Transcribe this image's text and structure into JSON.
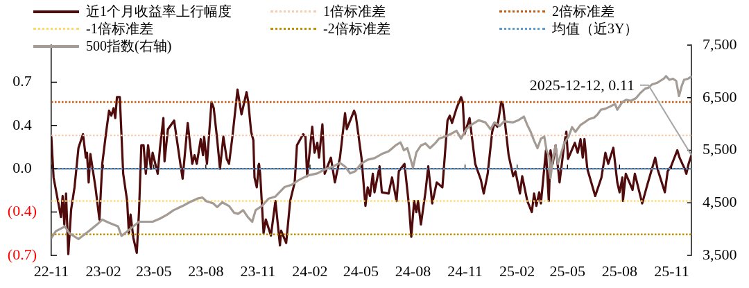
{
  "chart_data": {
    "type": "line",
    "legend": "top",
    "marker": "none",
    "xlim": [
      "2022-11-07",
      "2025-12-12"
    ],
    "xticks": [
      {
        "value": "2022-11-07",
        "label": "22-11"
      },
      {
        "value": "2023-02-07",
        "label": "23-02"
      },
      {
        "value": "2023-05-07",
        "label": "23-05"
      },
      {
        "value": "2023-08-07",
        "label": "23-08"
      },
      {
        "value": "2023-11-07",
        "label": "23-11"
      },
      {
        "value": "2024-02-07",
        "label": "24-02"
      },
      {
        "value": "2024-05-07",
        "label": "24-05"
      },
      {
        "value": "2024-08-07",
        "label": "24-08"
      },
      {
        "value": "2024-11-07",
        "label": "24-11"
      },
      {
        "value": "2025-02-07",
        "label": "25-02"
      },
      {
        "value": "2025-05-07",
        "label": "25-05"
      },
      {
        "value": "2025-08-07",
        "label": "25-08"
      },
      {
        "value": "2025-11-07",
        "label": "25-11"
      }
    ],
    "ylim": [
      -0.7,
      1.0
    ],
    "yticks": [
      {
        "value": -0.7,
        "label": "(0.7)"
      },
      {
        "value": -0.35,
        "label": "(0.4)"
      },
      {
        "value": 0,
        "label": "0.0"
      },
      {
        "value": 0.35,
        "label": "0.4"
      },
      0.7
    ],
    "y2lim": [
      3500,
      7500
    ],
    "y2ticks": [
      {
        "value": 3500,
        "label": "3,500"
      },
      {
        "value": 4500,
        "label": "4,500"
      },
      {
        "value": 5500,
        "label": "5,500"
      },
      {
        "value": 6500,
        "label": "6,500"
      },
      {
        "value": 7500,
        "label": "7,500"
      }
    ],
    "annotations": [
      {
        "text": "2025-12-12, 0.11",
        "x": "2025-12-12",
        "y": 0.11
      }
    ],
    "series": [
      {
        "name": "近1个月收益率上行幅度",
        "color": "#500c0c",
        "x": [
          "2022-11-07",
          "2022-11-11",
          "2022-11-24",
          "2022-11-27",
          "2022-11-30",
          "2022-12-03",
          "2022-12-07",
          "2022-12-12",
          "2022-12-18",
          "2022-12-25",
          "2023-01-02",
          "2023-01-07",
          "2023-01-09",
          "2023-01-12",
          "2023-01-15",
          "2023-01-24",
          "2023-01-31",
          "2023-02-05",
          "2023-02-12",
          "2023-02-17",
          "2023-02-21",
          "2023-02-25",
          "2023-02-28",
          "2023-03-03",
          "2023-03-08",
          "2023-03-14",
          "2023-03-21",
          "2023-03-24",
          "2023-03-27",
          "2023-04-01",
          "2023-04-07",
          "2023-04-11",
          "2023-04-15",
          "2023-04-19",
          "2023-04-23",
          "2023-04-27",
          "2023-05-02",
          "2023-05-05",
          "2023-05-14",
          "2023-05-18",
          "2023-05-24",
          "2023-05-26",
          "2023-06-01",
          "2023-06-12",
          "2023-06-23",
          "2023-06-27",
          "2023-07-06",
          "2023-07-14",
          "2023-07-18",
          "2023-07-22",
          "2023-07-29",
          "2023-08-02",
          "2023-08-04",
          "2023-08-09",
          "2023-08-17",
          "2023-08-21",
          "2023-08-27",
          "2023-09-01",
          "2023-09-07",
          "2023-09-13",
          "2023-09-17",
          "2023-09-23",
          "2023-10-02",
          "2023-10-09",
          "2023-10-18",
          "2023-10-21",
          "2023-10-26",
          "2023-10-30",
          "2023-11-01",
          "2023-11-05",
          "2023-11-09",
          "2023-11-11",
          "2023-11-17",
          "2023-11-21",
          "2023-11-30",
          "2023-12-08",
          "2023-12-16",
          "2023-12-18",
          "2023-12-27",
          "2024-01-03",
          "2024-01-11",
          "2024-01-15",
          "2024-01-26",
          "2024-01-30",
          "2024-02-02",
          "2024-02-11",
          "2024-02-15",
          "2024-02-20",
          "2024-02-23",
          "2024-02-29",
          "2024-03-04",
          "2024-03-15",
          "2024-03-22",
          "2024-03-31",
          "2024-04-09",
          "2024-04-12",
          "2024-04-25",
          "2024-04-28",
          "2024-05-08",
          "2024-05-15",
          "2024-05-19",
          "2024-05-23",
          "2024-05-28",
          "2024-05-31",
          "2024-06-09",
          "2024-06-13",
          "2024-06-25",
          "2024-07-01",
          "2024-07-09",
          "2024-07-13",
          "2024-07-23",
          "2024-07-31",
          "2024-08-04",
          "2024-08-09",
          "2024-08-13",
          "2024-08-16",
          "2024-08-21",
          "2024-08-29",
          "2024-09-03",
          "2024-09-10",
          "2024-09-18",
          "2024-09-28",
          "2024-10-07",
          "2024-10-11",
          "2024-10-15",
          "2024-10-23",
          "2024-10-31",
          "2024-11-03",
          "2024-11-06",
          "2024-11-15",
          "2024-11-25",
          "2024-12-05",
          "2024-12-10",
          "2024-12-17",
          "2024-12-25",
          "2024-12-29",
          "2025-01-03",
          "2025-01-10",
          "2025-01-13",
          "2025-01-23",
          "2025-01-31",
          "2025-02-04",
          "2025-02-12",
          "2025-02-16",
          "2025-02-25",
          "2025-03-05",
          "2025-03-09",
          "2025-03-13",
          "2025-03-18",
          "2025-03-21",
          "2025-03-30",
          "2025-04-04",
          "2025-04-07",
          "2025-04-11",
          "2025-04-16",
          "2025-04-23",
          "2025-05-01",
          "2025-05-05",
          "2025-05-08",
          "2025-05-20",
          "2025-05-25",
          "2025-05-30",
          "2025-06-03",
          "2025-06-06",
          "2025-06-11",
          "2025-06-25",
          "2025-07-06",
          "2025-07-13",
          "2025-07-18",
          "2025-07-27",
          "2025-08-03",
          "2025-08-07",
          "2025-08-12",
          "2025-08-13",
          "2025-08-18",
          "2025-08-30",
          "2025-09-03",
          "2025-09-16",
          "2025-09-25",
          "2025-10-09",
          "2025-10-13",
          "2025-10-26",
          "2025-10-31",
          "2025-11-06",
          "2025-11-17",
          "2025-11-21",
          "2025-11-30",
          "2025-12-03",
          "2025-12-07",
          "2025-12-12"
        ],
        "values": [
          0.26,
          -0.07,
          -0.39,
          -0.22,
          -0.45,
          -0.2,
          -0.69,
          -0.33,
          -0.15,
          0.17,
          0.28,
          0.09,
          0.13,
          -0.11,
          0.12,
          -0.15,
          -0.41,
          0.04,
          0.3,
          0.47,
          0.43,
          0.49,
          0.41,
          0.58,
          0.58,
          -0.04,
          -0.26,
          -0.52,
          -0.37,
          -0.56,
          -0.68,
          -0.34,
          0.19,
          0.19,
          -0.04,
          0.19,
          0.0,
          0.13,
          -0.04,
          0.17,
          0.41,
          0.06,
          0.32,
          0.39,
          0.04,
          -0.08,
          0.37,
          0.04,
          0.11,
          0.04,
          0.24,
          0.11,
          0.26,
          0.04,
          0.54,
          0.49,
          0.24,
          0.0,
          0.26,
          0.08,
          0.04,
          0.26,
          0.64,
          0.44,
          0.62,
          0.54,
          0.3,
          0.23,
          -0.07,
          -0.15,
          0.04,
          -0.04,
          -0.52,
          -0.41,
          -0.54,
          -0.26,
          -0.62,
          -0.5,
          -0.6,
          -0.26,
          -0.11,
          0.19,
          0.28,
          0.26,
          -0.06,
          0.34,
          0.13,
          0.21,
          0.09,
          0.36,
          -0.04,
          0.09,
          -0.11,
          0.09,
          0.45,
          0.32,
          0.47,
          0.43,
          0.09,
          -0.3,
          -0.15,
          -0.22,
          -0.04,
          -0.19,
          0.02,
          -0.19,
          -0.2,
          -0.07,
          -0.26,
          -0.02,
          0.04,
          -0.3,
          -0.55,
          -0.26,
          -0.35,
          -0.26,
          -0.45,
          -0.19,
          0.02,
          -0.28,
          -0.11,
          -0.15,
          0.39,
          0.43,
          0.37,
          0.49,
          0.58,
          0.54,
          0.28,
          0.41,
          0.04,
          -0.09,
          -0.2,
          -0.04,
          0.3,
          0.37,
          0.34,
          0.54,
          0.52,
          0.11,
          -0.06,
          -0.02,
          -0.2,
          -0.06,
          -0.26,
          -0.35,
          -0.2,
          -0.3,
          -0.19,
          -0.28,
          0.15,
          -0.26,
          0.15,
          0.04,
          0.19,
          -0.11,
          0.19,
          0.3,
          0.08,
          0.21,
          0.13,
          0.24,
          0.09,
          0.24,
          0.0,
          -0.22,
          -0.07,
          0.13,
          0.04,
          0.17,
          -0.11,
          -0.19,
          -0.07,
          -0.26,
          -0.04,
          -0.17,
          -0.04,
          -0.28,
          -0.13,
          0.09,
          0.0,
          -0.19,
          -0.02,
          0.02,
          0.15,
          0.09,
          0.0,
          -0.04,
          0.04,
          0.11
        ]
      },
      {
        "name": "1倍标准差",
        "color": "#f8cbad",
        "line_style": "dotted",
        "x": [
          "2022-11-07",
          "2025-12-12"
        ],
        "values": [
          0.27,
          0.27
        ]
      },
      {
        "name": "2倍标准差",
        "color": "#c55a11",
        "line_style": "dotted",
        "x": [
          "2022-11-07",
          "2025-12-12"
        ],
        "values": [
          0.54,
          0.54
        ]
      },
      {
        "name": "-1倍标准差",
        "color": "#ffd966",
        "line_style": "dotted",
        "x": [
          "2022-11-07",
          "2025-12-12"
        ],
        "values": [
          -0.26,
          -0.26
        ]
      },
      {
        "name": "-2倍标准差",
        "color": "#bf9000",
        "line_style": "dotted",
        "x": [
          "2022-11-07",
          "2025-12-12"
        ],
        "values": [
          -0.53,
          -0.53
        ]
      },
      {
        "name": "均值（近3Y）",
        "color": "#5b9bd5",
        "line_style": "dotted",
        "x": [
          "2022-11-07",
          "2025-12-12"
        ],
        "values": [
          0.0,
          0.0
        ]
      },
      {
        "name": "500指数(右轴)",
        "color": "#a39b94",
        "axis": "y2",
        "x": [
          "2022-11-07",
          "2022-11-15",
          "2022-12-01",
          "2022-12-09",
          "2022-12-25",
          "2023-01-12",
          "2023-01-27",
          "2023-02-05",
          "2023-02-17",
          "2023-03-05",
          "2023-03-11",
          "2023-03-26",
          "2023-04-11",
          "2023-05-05",
          "2023-05-18",
          "2023-05-30",
          "2023-06-11",
          "2023-06-27",
          "2023-07-09",
          "2023-07-23",
          "2023-08-01",
          "2023-08-08",
          "2023-08-20",
          "2023-08-27",
          "2023-09-05",
          "2023-09-17",
          "2023-09-26",
          "2023-10-03",
          "2023-10-12",
          "2023-10-20",
          "2023-10-28",
          "2023-11-03",
          "2023-11-14",
          "2023-11-26",
          "2023-12-08",
          "2023-12-16",
          "2023-12-24",
          "2024-01-05",
          "2024-01-18",
          "2024-02-03",
          "2024-02-20",
          "2024-03-07",
          "2024-03-19",
          "2024-03-31",
          "2024-04-09",
          "2024-04-18",
          "2024-04-27",
          "2024-05-07",
          "2024-05-19",
          "2024-05-31",
          "2024-06-13",
          "2024-06-25",
          "2024-07-07",
          "2024-07-16",
          "2024-07-22",
          "2024-07-28",
          "2024-08-03",
          "2024-08-07",
          "2024-08-13",
          "2024-08-21",
          "2024-08-29",
          "2024-09-06",
          "2024-09-15",
          "2024-09-22",
          "2024-10-03",
          "2024-10-13",
          "2024-10-23",
          "2024-10-31",
          "2024-11-09",
          "2024-11-19",
          "2024-12-01",
          "2024-12-13",
          "2024-12-22",
          "2024-12-29",
          "2025-01-07",
          "2025-01-15",
          "2025-01-31",
          "2025-02-09",
          "2025-02-19",
          "2025-02-25",
          "2025-03-03",
          "2025-03-09",
          "2025-03-15",
          "2025-03-21",
          "2025-03-27",
          "2025-03-31",
          "2025-04-05",
          "2025-04-07",
          "2025-04-11",
          "2025-04-16",
          "2025-04-20",
          "2025-04-25",
          "2025-05-01",
          "2025-05-09",
          "2025-05-15",
          "2025-05-21",
          "2025-05-30",
          "2025-06-06",
          "2025-06-14",
          "2025-06-23",
          "2025-06-29",
          "2025-07-05",
          "2025-07-13",
          "2025-07-21",
          "2025-07-30",
          "2025-08-03",
          "2025-08-12",
          "2025-08-19",
          "2025-08-27",
          "2025-09-05",
          "2025-09-12",
          "2025-09-21",
          "2025-09-27",
          "2025-10-03",
          "2025-10-12",
          "2025-10-18",
          "2025-10-24",
          "2025-10-28",
          "2025-11-03",
          "2025-11-09",
          "2025-11-15",
          "2025-11-20",
          "2025-11-25",
          "2025-11-29",
          "2025-12-06",
          "2025-12-12"
        ],
        "values": [
          3830,
          3960,
          4050,
          3920,
          3810,
          3960,
          4090,
          4180,
          4120,
          4050,
          3870,
          4000,
          4140,
          4140,
          4200,
          4270,
          4360,
          4440,
          4510,
          4580,
          4600,
          4530,
          4490,
          4420,
          4510,
          4440,
          4310,
          4290,
          4360,
          4230,
          4140,
          4360,
          4440,
          4580,
          4620,
          4710,
          4800,
          4840,
          4930,
          5020,
          5060,
          5150,
          5190,
          5260,
          5190,
          5060,
          5100,
          5240,
          5320,
          5350,
          5430,
          5480,
          5590,
          5650,
          5500,
          5540,
          5320,
          5170,
          5460,
          5590,
          5630,
          5540,
          5630,
          5720,
          5760,
          5810,
          5870,
          5720,
          5900,
          5990,
          6070,
          6030,
          5900,
          6030,
          5960,
          6050,
          6030,
          6070,
          6140,
          5980,
          5850,
          5680,
          5540,
          5720,
          5760,
          5500,
          5370,
          4970,
          5320,
          5590,
          5240,
          5410,
          5630,
          5760,
          5940,
          5850,
          5980,
          6030,
          6090,
          6120,
          6180,
          6270,
          6290,
          6330,
          6380,
          6270,
          6420,
          6460,
          6440,
          6490,
          6580,
          6670,
          6690,
          6750,
          6780,
          6820,
          6860,
          6910,
          6840,
          6860,
          6820,
          6530,
          6730,
          6840,
          6860,
          6900
        ]
      }
    ]
  }
}
